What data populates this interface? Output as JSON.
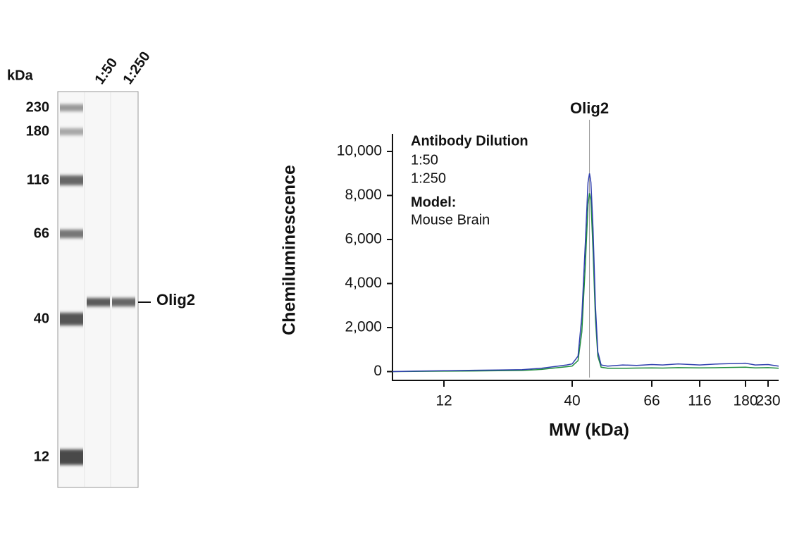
{
  "blot": {
    "unit_label": "kDa",
    "lanes": [
      "1:50",
      "1:250"
    ],
    "ladder": [
      230,
      180,
      116,
      66,
      40,
      12
    ],
    "band_label": "Olig2"
  },
  "chart_data": {
    "type": "line",
    "ylabel": "Chemiluminescence",
    "xlabel": "MW (kDa)",
    "x": [
      7.4,
      9,
      12,
      16,
      20,
      25,
      30,
      35,
      38,
      40,
      41.5,
      42.5,
      43.5,
      44.2,
      44.6,
      45.0,
      45.6,
      46.3,
      47,
      48,
      50,
      55,
      60,
      66,
      75,
      90,
      116,
      140,
      180,
      200,
      230,
      258
    ],
    "series": [
      {
        "name": "1:50",
        "color": "#2f3fae",
        "values": [
          0,
          20,
          40,
          60,
          70,
          90,
          150,
          250,
          300,
          350,
          700,
          2500,
          6000,
          8600,
          9000,
          8600,
          6500,
          3000,
          900,
          300,
          250,
          300,
          280,
          320,
          300,
          350,
          300,
          350,
          380,
          300,
          320,
          250
        ]
      },
      {
        "name": "1:250",
        "color": "#1e8c3c",
        "values": [
          0,
          10,
          20,
          30,
          40,
          50,
          100,
          180,
          220,
          250,
          500,
          1800,
          5000,
          7600,
          8100,
          7800,
          5500,
          2400,
          700,
          200,
          150,
          150,
          160,
          170,
          160,
          180,
          170,
          180,
          200,
          170,
          180,
          150
        ]
      }
    ],
    "xscale": "log",
    "xlim": [
      7.4,
      258
    ],
    "xticks": [
      12,
      40,
      66,
      116,
      180,
      230
    ],
    "ylim": [
      -400,
      10800
    ],
    "yticks": [
      0,
      {
        "value": 2000,
        "label": "2,000"
      },
      {
        "value": 4000,
        "label": "4,000"
      },
      {
        "value": 6000,
        "label": "6,000"
      },
      {
        "value": 8000,
        "label": "8,000"
      },
      {
        "value": 10000,
        "label": "10,000"
      }
    ],
    "legend": {
      "title": "Antibody Dilution",
      "model_title": "Model:",
      "model": "Mouse Brain"
    },
    "annotation": {
      "label": "Olig2",
      "x": 44.6
    }
  }
}
